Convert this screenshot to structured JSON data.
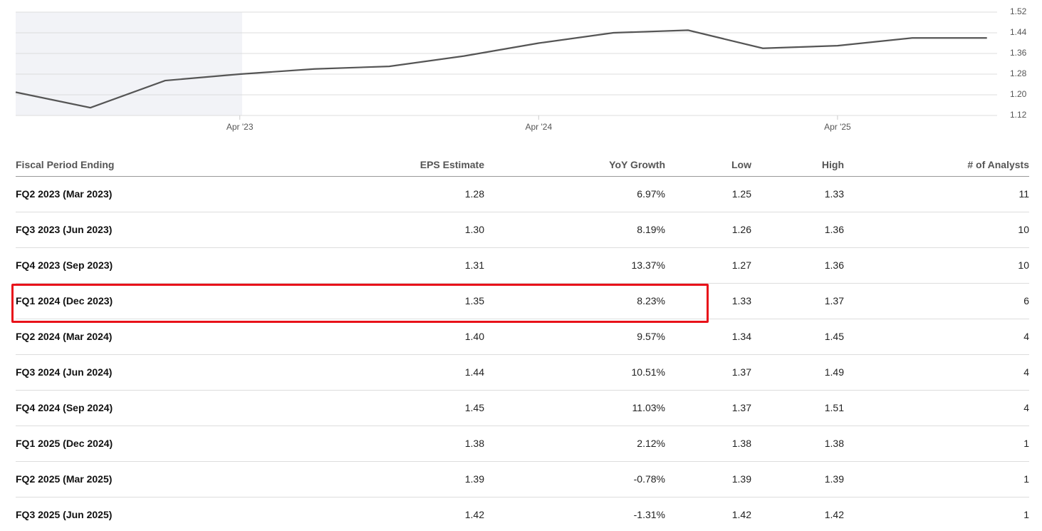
{
  "chart_data": {
    "type": "line",
    "categories": [
      null,
      null,
      null,
      "Apr '23",
      null,
      null,
      null,
      "Apr '24",
      null,
      null,
      null,
      "Apr '25",
      null,
      null
    ],
    "series": [
      {
        "color": "#555555",
        "values": [
          1.21,
          1.15,
          1.255,
          1.28,
          1.3,
          1.31,
          1.35,
          1.4,
          1.44,
          1.45,
          1.38,
          1.39,
          1.42,
          1.42
        ]
      }
    ],
    "ylim": [
      1.12,
      1.52
    ],
    "yticks": [
      1.12,
      {
        "value": 1.2,
        "label": "1.20"
      },
      1.28,
      1.36,
      1.44,
      1.52
    ],
    "grid": true
  },
  "table": {
    "columns": [
      "Fiscal Period Ending",
      "EPS Estimate",
      "YoY Growth",
      "Low",
      "High",
      "# of Analysts"
    ],
    "rows": [
      [
        "FQ2 2023 (Mar 2023)",
        "1.28",
        "6.97%",
        "1.25",
        "1.33",
        "11"
      ],
      [
        "FQ3 2023 (Jun 2023)",
        "1.30",
        "8.19%",
        "1.26",
        "1.36",
        "10"
      ],
      [
        "FQ4 2023 (Sep 2023)",
        "1.31",
        "13.37%",
        "1.27",
        "1.36",
        "10"
      ],
      [
        "FQ1 2024 (Dec 2023)",
        "1.35",
        "8.23%",
        "1.33",
        "1.37",
        "6"
      ],
      [
        "FQ2 2024 (Mar 2024)",
        "1.40",
        "9.57%",
        "1.34",
        "1.45",
        "4"
      ],
      [
        "FQ3 2024 (Jun 2024)",
        "1.44",
        "10.51%",
        "1.37",
        "1.49",
        "4"
      ],
      [
        "FQ4 2024 (Sep 2024)",
        "1.45",
        "11.03%",
        "1.37",
        "1.51",
        "4"
      ],
      [
        "FQ1 2025 (Dec 2024)",
        "1.38",
        "2.12%",
        "1.38",
        "1.38",
        "1"
      ],
      [
        "FQ2 2025 (Mar 2025)",
        "1.39",
        "-0.78%",
        "1.39",
        "1.39",
        "1"
      ],
      [
        "FQ3 2025 (Jun 2025)",
        "1.42",
        "-1.31%",
        "1.42",
        "1.42",
        "1"
      ]
    ]
  }
}
